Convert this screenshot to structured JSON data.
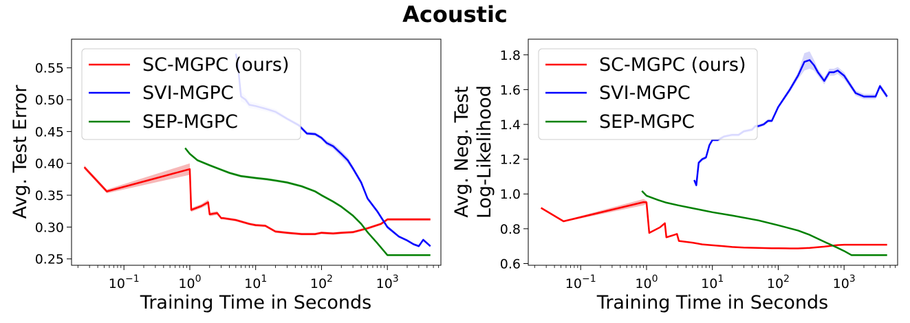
{
  "figure": {
    "title": "Acoustic"
  },
  "legend": {
    "entries": [
      {
        "name": "SC-MGPC (ours)",
        "color": "#ff0000"
      },
      {
        "name": "SVI-MGPC",
        "color": "#0000ff"
      },
      {
        "name": "SEP-MGPC",
        "color": "#008000"
      }
    ]
  },
  "chart_data": [
    {
      "type": "line",
      "xlabel": "Training Time in Seconds",
      "ylabel": "Avg. Test Error",
      "xscale": "log",
      "xlim": [
        0.016,
        6500
      ],
      "ylim": [
        0.24,
        0.595
      ],
      "xticks": [
        0.1,
        1,
        10,
        100,
        1000
      ],
      "xtick_labels": [
        {
          "base": "10",
          "exp": "−1"
        },
        {
          "base": "10",
          "exp": "0"
        },
        {
          "base": "10",
          "exp": "1"
        },
        {
          "base": "10",
          "exp": "2"
        },
        {
          "base": "10",
          "exp": "3"
        }
      ],
      "yticks": [
        "0.25",
        "0.30",
        "0.35",
        "0.40",
        "0.45",
        "0.50",
        "0.55"
      ],
      "legend_position": "upper-left",
      "grid": false,
      "series": [
        {
          "name": "SC-MGPC (ours)",
          "color": "#ff0000",
          "band_color": "#f4a0a0",
          "x": [
            0.025,
            0.055,
            1.0,
            1.05,
            1.5,
            1.9,
            2.0,
            2.6,
            3.0,
            3.2,
            5,
            8,
            10,
            14,
            20,
            30,
            50,
            80,
            100,
            150,
            200,
            300,
            500,
            800,
            1000,
            1500,
            3000,
            4500
          ],
          "y": [
            0.394,
            0.356,
            0.391,
            0.327,
            0.333,
            0.339,
            0.32,
            0.322,
            0.314,
            0.314,
            0.311,
            0.305,
            0.303,
            0.302,
            0.293,
            0.291,
            0.289,
            0.289,
            0.291,
            0.29,
            0.291,
            0.292,
            0.298,
            0.305,
            0.312,
            0.312,
            0.312,
            0.312
          ],
          "band": [
            0.003,
            0.003,
            0.009,
            0.003,
            0.003,
            0.004,
            0.003,
            0.003,
            0.002,
            0.002,
            0.002,
            0.002,
            0.002,
            0.002,
            0.002,
            0.002,
            0.002,
            0.002,
            0.002,
            0.002,
            0.002,
            0.002,
            0.002,
            0.002,
            0.002,
            0.002,
            0.002,
            0.002
          ]
        },
        {
          "name": "SVI-MGPC",
          "color": "#0000ff",
          "band_color": "#c8c8f8",
          "x": [
            5.0,
            5.3,
            6,
            7,
            8,
            10,
            15,
            20,
            30,
            45,
            60,
            80,
            100,
            120,
            150,
            200,
            250,
            300,
            400,
            500,
            700,
            1000,
            1500,
            2000,
            2500,
            3000,
            3500,
            4500
          ],
          "y": [
            0.572,
            0.56,
            0.505,
            0.5,
            0.492,
            0.49,
            0.485,
            0.481,
            0.47,
            0.46,
            0.447,
            0.446,
            0.44,
            0.432,
            0.427,
            0.415,
            0.405,
            0.392,
            0.37,
            0.345,
            0.325,
            0.3,
            0.285,
            0.279,
            0.273,
            0.27,
            0.28,
            0.27
          ],
          "band": [
            0.003,
            0.008,
            0.008,
            0.006,
            0.005,
            0.005,
            0.004,
            0.004,
            0.003,
            0.003,
            0.003,
            0.003,
            0.003,
            0.004,
            0.004,
            0.005,
            0.005,
            0.004,
            0.004,
            0.003,
            0.003,
            0.003,
            0.002,
            0.002,
            0.002,
            0.002,
            0.002,
            0.002
          ]
        },
        {
          "name": "SEP-MGPC",
          "color": "#008000",
          "band_color": "#a8d8a8",
          "x": [
            0.85,
            1.0,
            1.3,
            2.0,
            3.0,
            4.0,
            6,
            10,
            15,
            20,
            30,
            50,
            80,
            100,
            150,
            200,
            300,
            400,
            500,
            700,
            1000,
            1500,
            2000,
            3000,
            4500
          ],
          "y": [
            0.424,
            0.415,
            0.405,
            0.397,
            0.39,
            0.385,
            0.38,
            0.377,
            0.375,
            0.373,
            0.37,
            0.364,
            0.356,
            0.35,
            0.34,
            0.332,
            0.318,
            0.305,
            0.292,
            0.275,
            0.256,
            0.256,
            0.256,
            0.256,
            0.256
          ],
          "band": [
            0.002,
            0.002,
            0.002,
            0.002,
            0.002,
            0.002,
            0.002,
            0.002,
            0.002,
            0.002,
            0.002,
            0.002,
            0.002,
            0.002,
            0.002,
            0.002,
            0.002,
            0.002,
            0.002,
            0.002,
            0.001,
            0.001,
            0.001,
            0.001,
            0.001
          ]
        }
      ]
    },
    {
      "type": "line",
      "xlabel": "Training Time in Seconds",
      "ylabel": "Avg. Neg. Test",
      "ylabel2": "Log-Likelihood",
      "xscale": "log",
      "xlim": [
        0.016,
        6500
      ],
      "ylim": [
        0.59,
        1.89
      ],
      "xticks": [
        0.1,
        1,
        10,
        100,
        1000
      ],
      "xtick_labels": [
        {
          "base": "10",
          "exp": "−1"
        },
        {
          "base": "10",
          "exp": "0"
        },
        {
          "base": "10",
          "exp": "1"
        },
        {
          "base": "10",
          "exp": "2"
        },
        {
          "base": "10",
          "exp": "3"
        }
      ],
      "yticks": [
        "0.6",
        "0.8",
        "1.0",
        "1.2",
        "1.4",
        "1.6",
        "1.8"
      ],
      "legend_position": "upper-left",
      "grid": false,
      "series": [
        {
          "name": "SC-MGPC (ours)",
          "color": "#ff0000",
          "band_color": "#f4a0a0",
          "x": [
            0.025,
            0.055,
            0.9,
            1.0,
            1.1,
            1.6,
            1.9,
            2.0,
            2.5,
            2.9,
            3.1,
            5,
            7,
            10,
            15,
            20,
            30,
            50,
            80,
            100,
            150,
            200,
            300,
            500,
            800,
            1000,
            2000,
            4500
          ],
          "y": [
            0.92,
            0.843,
            0.953,
            0.952,
            0.776,
            0.808,
            0.832,
            0.751,
            0.762,
            0.77,
            0.73,
            0.72,
            0.71,
            0.705,
            0.7,
            0.695,
            0.692,
            0.69,
            0.688,
            0.688,
            0.687,
            0.687,
            0.69,
            0.697,
            0.706,
            0.708,
            0.708,
            0.708
          ],
          "band": [
            0.004,
            0.004,
            0.018,
            0.01,
            0.004,
            0.004,
            0.004,
            0.004,
            0.003,
            0.003,
            0.003,
            0.003,
            0.002,
            0.002,
            0.002,
            0.002,
            0.002,
            0.002,
            0.002,
            0.002,
            0.002,
            0.002,
            0.002,
            0.002,
            0.002,
            0.002,
            0.002,
            0.002
          ]
        },
        {
          "name": "SVI-MGPC",
          "color": "#0000ff",
          "band_color": "#c8c8f8",
          "x": [
            5.3,
            5.7,
            6.2,
            7,
            8,
            9,
            10,
            12,
            15,
            20,
            25,
            30,
            40,
            45,
            50,
            60,
            70,
            80,
            100,
            150,
            200,
            250,
            300,
            350,
            400,
            500,
            600,
            700,
            800,
            1000,
            1500,
            2000,
            3000,
            3500,
            4500
          ],
          "y": [
            1.08,
            1.05,
            1.18,
            1.2,
            1.21,
            1.28,
            1.31,
            1.31,
            1.33,
            1.34,
            1.34,
            1.36,
            1.37,
            1.39,
            1.39,
            1.4,
            1.42,
            1.42,
            1.5,
            1.6,
            1.68,
            1.76,
            1.77,
            1.74,
            1.7,
            1.65,
            1.7,
            1.7,
            1.71,
            1.68,
            1.58,
            1.56,
            1.56,
            1.62,
            1.56
          ],
          "band": [
            0.01,
            0.01,
            0.01,
            0.01,
            0.01,
            0.01,
            0.01,
            0.01,
            0.01,
            0.01,
            0.01,
            0.01,
            0.01,
            0.01,
            0.01,
            0.01,
            0.01,
            0.01,
            0.01,
            0.015,
            0.02,
            0.05,
            0.05,
            0.03,
            0.02,
            0.02,
            0.02,
            0.02,
            0.02,
            0.02,
            0.015,
            0.015,
            0.015,
            0.015,
            0.015
          ]
        },
        {
          "name": "SEP-MGPC",
          "color": "#008000",
          "band_color": "#a8d8a8",
          "x": [
            0.85,
            1.0,
            1.5,
            2.0,
            3.0,
            5,
            10,
            20,
            50,
            100,
            200,
            300,
            500,
            800,
            1000,
            1300,
            2000,
            3000,
            4500
          ],
          "y": [
            1.017,
            0.99,
            0.965,
            0.95,
            0.935,
            0.918,
            0.895,
            0.876,
            0.848,
            0.82,
            0.79,
            0.765,
            0.725,
            0.69,
            0.672,
            0.648,
            0.648,
            0.648,
            0.648
          ],
          "band": [
            0.003,
            0.003,
            0.003,
            0.003,
            0.003,
            0.003,
            0.003,
            0.003,
            0.003,
            0.003,
            0.003,
            0.003,
            0.003,
            0.002,
            0.002,
            0.002,
            0.002,
            0.002,
            0.002
          ]
        }
      ]
    }
  ]
}
